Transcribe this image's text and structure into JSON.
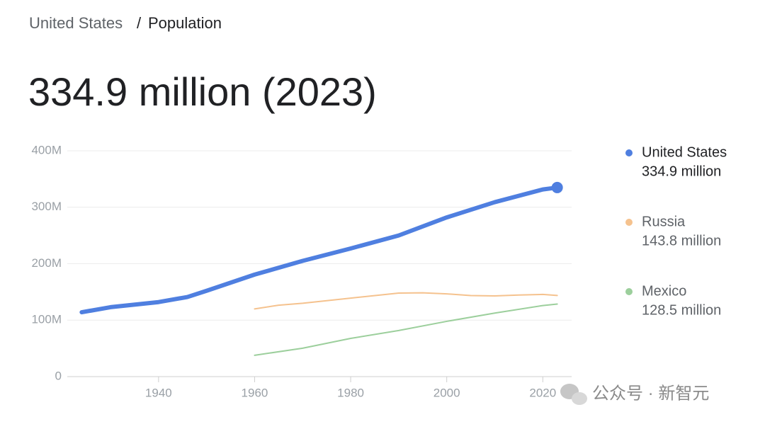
{
  "header": {
    "breadcrumb": [
      "United States",
      "/",
      "Population"
    ],
    "headline": "334.9 million (2023)"
  },
  "chart_data": {
    "type": "line",
    "xlim": [
      1921,
      2026
    ],
    "xticks": [
      1940,
      1960,
      1980,
      2000,
      2020
    ],
    "ylim": [
      0,
      400
    ],
    "yticks": [
      0,
      {
        "value": 100,
        "label": "100M"
      },
      {
        "value": 200,
        "label": "200M"
      },
      {
        "value": 300,
        "label": "300M"
      },
      {
        "value": 400,
        "label": "400M"
      }
    ],
    "grid": true,
    "legend": "right",
    "series": [
      {
        "name": "United States",
        "color": "#4f7fe0",
        "x": [
          1924,
          1930,
          1940,
          1946,
          1950,
          1960,
          1970,
          1980,
          1990,
          2000,
          2010,
          2020,
          2023
        ],
        "values": [
          114,
          123,
          132,
          141,
          152,
          180.7,
          205,
          227,
          250,
          282,
          309,
          331.5,
          334.9
        ],
        "value_labels": [
          null,
          null,
          null,
          null,
          null,
          null,
          null,
          null,
          null,
          null,
          null,
          null,
          "334.9 million"
        ]
      },
      {
        "name": "Russia",
        "color": "#f5c28e",
        "x": [
          1960,
          1965,
          1970,
          1980,
          1990,
          1995,
          2000,
          2005,
          2010,
          2015,
          2020,
          2023
        ],
        "values": [
          119.9,
          126.5,
          130,
          139,
          148,
          148.4,
          146.6,
          143.5,
          143,
          144.5,
          145.6,
          143.8
        ],
        "value_labels": [
          null,
          null,
          null,
          null,
          null,
          null,
          null,
          null,
          null,
          null,
          null,
          "143.8 million"
        ]
      },
      {
        "name": "Mexico",
        "color": "#9ccf9c",
        "x": [
          1960,
          1970,
          1980,
          1990,
          2000,
          2010,
          2020,
          2023
        ],
        "values": [
          37.8,
          50.3,
          67.7,
          81.7,
          97.9,
          112.5,
          125.9,
          128.5
        ],
        "value_labels": [
          null,
          null,
          null,
          null,
          null,
          null,
          null,
          "128.5 million"
        ]
      }
    ]
  },
  "watermark": "公众号 · 新智元"
}
